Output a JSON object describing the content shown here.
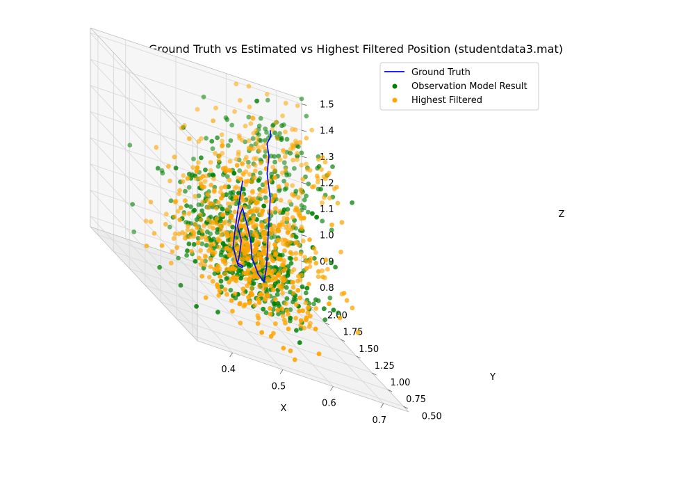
{
  "chart_data": {
    "type": "scatter",
    "projection": "3d",
    "title": "Ground Truth vs Estimated vs Highest Filtered Position (studentdata3.mat)",
    "xlabel": "X",
    "ylabel": "Y",
    "zlabel": "Z",
    "xlim": [
      0.33,
      0.75
    ],
    "ylim": [
      0.42,
      2.12
    ],
    "zlim": [
      0.76,
      1.52
    ],
    "x_ticks": [
      {
        "value": 0.4,
        "label": "0.4"
      },
      {
        "value": 0.5,
        "label": "0.5"
      },
      {
        "value": 0.6,
        "label": "0.6"
      },
      {
        "value": 0.7,
        "label": "0.7"
      }
    ],
    "y_ticks": [
      {
        "value": 0.5,
        "label": "0.50"
      },
      {
        "value": 0.75,
        "label": "0.75"
      },
      {
        "value": 1.0,
        "label": "1.00"
      },
      {
        "value": 1.25,
        "label": "1.25"
      },
      {
        "value": 1.5,
        "label": "1.50"
      },
      {
        "value": 1.75,
        "label": "1.75"
      },
      {
        "value": 2.0,
        "label": "2.00"
      }
    ],
    "z_ticks": [
      {
        "value": 0.8,
        "label": "0.8"
      },
      {
        "value": 0.9,
        "label": "0.9"
      },
      {
        "value": 1.0,
        "label": "1.0"
      },
      {
        "value": 1.1,
        "label": "1.1"
      },
      {
        "value": 1.2,
        "label": "1.2"
      },
      {
        "value": 1.3,
        "label": "1.3"
      },
      {
        "value": 1.4,
        "label": "1.4"
      },
      {
        "value": 1.5,
        "label": "1.5"
      }
    ],
    "grid": true,
    "legend": "top-right",
    "series": [
      {
        "name": "Ground Truth",
        "kind": "line",
        "color": "#0000ff",
        "points": [
          [
            0.47,
            0.82,
            1.36
          ],
          [
            0.47,
            0.86,
            1.29
          ],
          [
            0.47,
            0.9,
            1.22
          ],
          [
            0.47,
            0.94,
            1.14
          ],
          [
            0.47,
            0.97,
            1.07
          ],
          [
            0.48,
            1.0,
            1.02
          ],
          [
            0.49,
            1.05,
            0.99
          ],
          [
            0.5,
            1.1,
            0.98
          ],
          [
            0.51,
            1.15,
            0.97
          ],
          [
            0.52,
            1.22,
            0.96
          ],
          [
            0.53,
            1.3,
            0.95
          ],
          [
            0.53,
            1.38,
            0.94
          ],
          [
            0.54,
            1.44,
            0.95
          ],
          [
            0.55,
            1.5,
            0.97
          ],
          [
            0.56,
            1.56,
            1.0
          ],
          [
            0.56,
            1.62,
            1.04
          ],
          [
            0.57,
            1.66,
            1.08
          ],
          [
            0.58,
            1.7,
            1.1
          ],
          [
            0.59,
            1.72,
            1.05
          ],
          [
            0.6,
            1.73,
            0.98
          ],
          [
            0.6,
            1.71,
            0.92
          ],
          [
            0.61,
            1.69,
            0.87
          ],
          [
            0.62,
            1.68,
            0.85
          ],
          [
            0.63,
            1.72,
            0.9
          ],
          [
            0.64,
            1.78,
            0.98
          ],
          [
            0.65,
            1.84,
            1.06
          ],
          [
            0.66,
            1.9,
            1.14
          ],
          [
            0.66,
            1.95,
            1.22
          ],
          [
            0.67,
            2.0,
            1.28
          ],
          [
            0.67,
            2.03,
            1.32
          ],
          [
            0.68,
            2.05,
            1.35
          ],
          [
            0.68,
            2.06,
            1.37
          ]
        ]
      },
      {
        "name": "Observation Model Result",
        "kind": "scatter",
        "color": "#008000",
        "count": 620
      },
      {
        "name": "Highest Filtered",
        "kind": "scatter",
        "color": "#ffa500",
        "count": 720
      }
    ]
  }
}
